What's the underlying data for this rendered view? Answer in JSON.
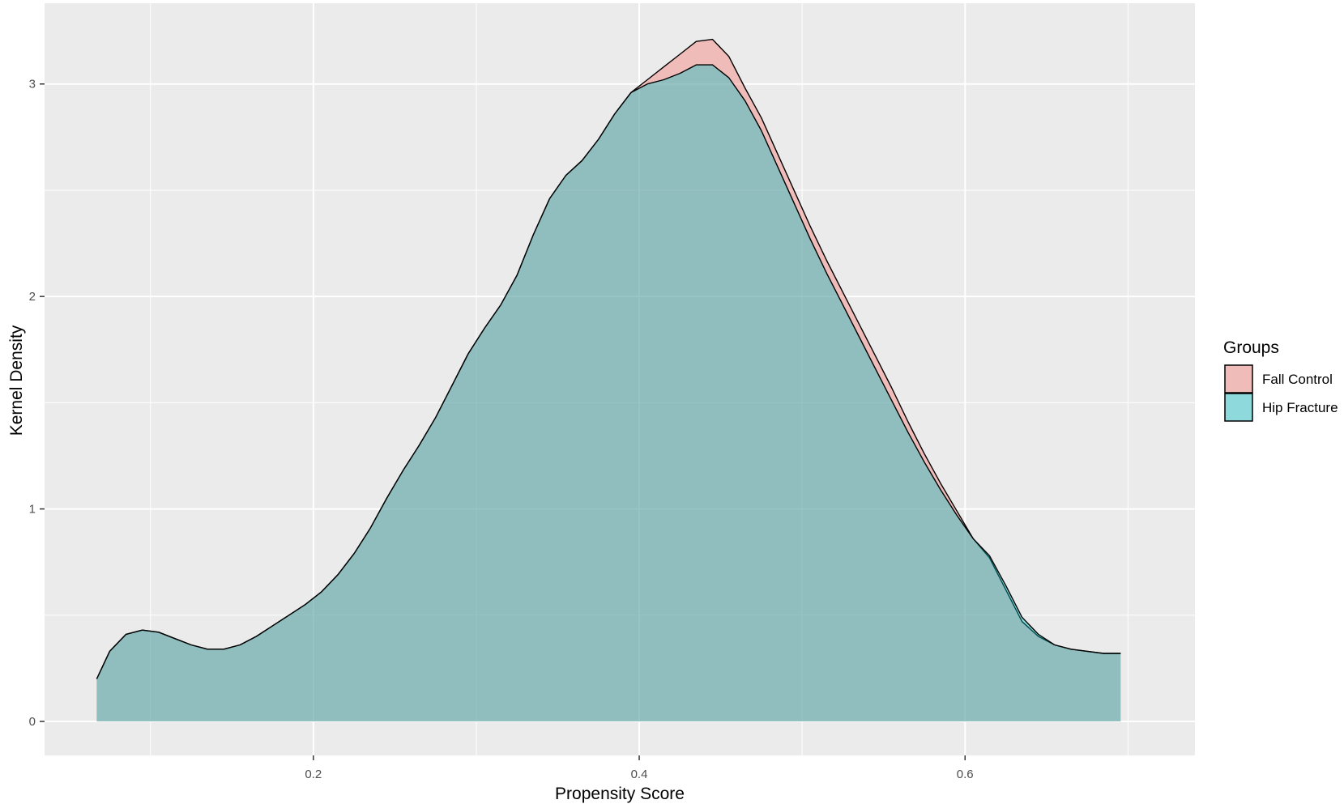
{
  "chart_data": {
    "type": "area",
    "subtype": "kernel-density",
    "title": "",
    "xlabel": "Propensity Score",
    "ylabel": "Kernel Density",
    "xlim": [
      0.035,
      0.7411
    ],
    "ylim": [
      -0.16,
      3.38
    ],
    "x_ticks": [
      0.2,
      0.4,
      0.6
    ],
    "x_tick_labels": [
      "0.2",
      "0.4",
      "0.6"
    ],
    "y_ticks": [
      0,
      1,
      2,
      3
    ],
    "y_tick_labels": [
      "0",
      "1",
      "2",
      "3"
    ],
    "x_minor_ticks": [
      0.1,
      0.3,
      0.5,
      0.7
    ],
    "y_minor_ticks": [
      0.5,
      1.5,
      2.5
    ],
    "grid": true,
    "legend": {
      "title": "Groups",
      "placement": "right"
    },
    "colors": {
      "panel_background": "#ebebeb",
      "grid_line": "#ffffff",
      "outline": "#000000"
    },
    "series": [
      {
        "name": "Fall Control",
        "color": "#F8766D",
        "opacity": 0.4,
        "x": [
          0.067,
          0.075,
          0.085,
          0.095,
          0.105,
          0.115,
          0.125,
          0.135,
          0.145,
          0.155,
          0.165,
          0.175,
          0.185,
          0.195,
          0.205,
          0.215,
          0.225,
          0.235,
          0.245,
          0.255,
          0.265,
          0.275,
          0.285,
          0.295,
          0.305,
          0.315,
          0.325,
          0.335,
          0.345,
          0.355,
          0.365,
          0.375,
          0.385,
          0.395,
          0.405,
          0.415,
          0.425,
          0.435,
          0.445,
          0.455,
          0.465,
          0.475,
          0.485,
          0.495,
          0.505,
          0.515,
          0.525,
          0.535,
          0.545,
          0.555,
          0.565,
          0.575,
          0.585,
          0.595,
          0.605,
          0.615,
          0.625,
          0.635,
          0.645,
          0.655,
          0.665,
          0.675,
          0.685,
          0.69,
          0.6955
        ],
        "y": [
          0.2,
          0.33,
          0.41,
          0.43,
          0.42,
          0.39,
          0.36,
          0.34,
          0.34,
          0.36,
          0.4,
          0.45,
          0.5,
          0.55,
          0.61,
          0.69,
          0.79,
          0.91,
          1.05,
          1.18,
          1.3,
          1.43,
          1.58,
          1.73,
          1.85,
          1.96,
          2.1,
          2.29,
          2.46,
          2.57,
          2.64,
          2.74,
          2.86,
          2.96,
          3.02,
          3.08,
          3.14,
          3.2,
          3.21,
          3.13,
          2.98,
          2.84,
          2.67,
          2.5,
          2.33,
          2.17,
          2.02,
          1.87,
          1.72,
          1.57,
          1.41,
          1.26,
          1.12,
          0.99,
          0.86,
          0.77,
          0.62,
          0.47,
          0.4,
          0.36,
          0.34,
          0.33,
          0.32,
          0.32,
          0.32
        ]
      },
      {
        "name": "Hip Fracture",
        "color": "#00BFC4",
        "opacity": 0.4,
        "x": [
          0.067,
          0.075,
          0.085,
          0.095,
          0.105,
          0.115,
          0.125,
          0.135,
          0.145,
          0.155,
          0.165,
          0.175,
          0.185,
          0.195,
          0.205,
          0.215,
          0.225,
          0.235,
          0.245,
          0.255,
          0.265,
          0.275,
          0.285,
          0.295,
          0.305,
          0.315,
          0.325,
          0.335,
          0.345,
          0.355,
          0.365,
          0.375,
          0.385,
          0.395,
          0.405,
          0.415,
          0.425,
          0.435,
          0.445,
          0.455,
          0.465,
          0.475,
          0.485,
          0.495,
          0.505,
          0.515,
          0.525,
          0.535,
          0.545,
          0.555,
          0.565,
          0.575,
          0.585,
          0.595,
          0.605,
          0.615,
          0.625,
          0.635,
          0.645,
          0.655,
          0.665,
          0.675,
          0.685,
          0.69,
          0.6955
        ],
        "y": [
          0.2,
          0.33,
          0.41,
          0.43,
          0.42,
          0.39,
          0.36,
          0.34,
          0.34,
          0.36,
          0.4,
          0.45,
          0.5,
          0.55,
          0.61,
          0.69,
          0.79,
          0.91,
          1.05,
          1.18,
          1.3,
          1.43,
          1.58,
          1.73,
          1.85,
          1.96,
          2.1,
          2.29,
          2.46,
          2.57,
          2.64,
          2.74,
          2.86,
          2.96,
          3.0,
          3.02,
          3.05,
          3.09,
          3.09,
          3.03,
          2.92,
          2.78,
          2.61,
          2.44,
          2.27,
          2.11,
          1.96,
          1.81,
          1.66,
          1.51,
          1.36,
          1.22,
          1.09,
          0.97,
          0.86,
          0.78,
          0.64,
          0.49,
          0.41,
          0.36,
          0.34,
          0.33,
          0.32,
          0.32,
          0.32
        ]
      }
    ]
  }
}
